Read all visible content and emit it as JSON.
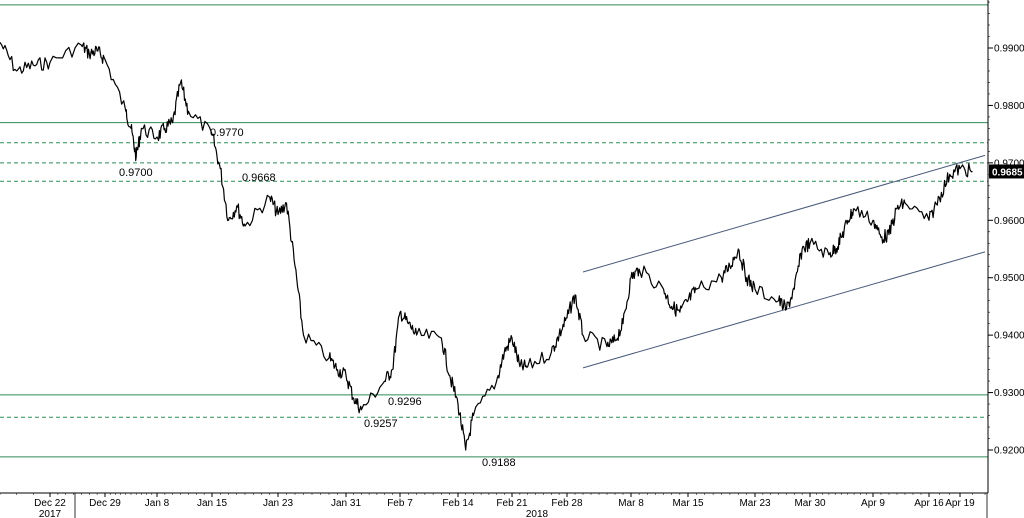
{
  "chart_data": {
    "type": "line",
    "title": "",
    "xlabel": "",
    "ylabel": "",
    "ylim": [
      0.915,
      1.0
    ],
    "grid": false,
    "x_tick_labels": [
      "Dec 22",
      "Dec 29",
      "Jan 8",
      "Jan 15",
      "Jan 23",
      "Jan 31",
      "Feb 7",
      "Feb 14",
      "Feb 21",
      "Feb 28",
      "Mar 8",
      "Mar 15",
      "Mar 23",
      "Mar 30",
      "Apr 9",
      "Apr 16",
      "Apr 19"
    ],
    "year_labels": [
      "2017",
      "2018"
    ],
    "y_tick_labels": [
      "0.9900",
      "0.9800",
      "0.9700",
      "0.9600",
      "0.9500",
      "0.9400",
      "0.9300",
      "0.9200"
    ],
    "y_ticks": [
      0.99,
      0.98,
      0.97,
      0.96,
      0.95,
      0.94,
      0.93,
      0.92
    ],
    "last_value_label": "0.9685",
    "last_value": 0.9685,
    "annotations": [
      {
        "text": "0.9770",
        "value": 0.977
      },
      {
        "text": "0.9700",
        "value": 0.97
      },
      {
        "text": "0.9668",
        "value": 0.9668
      },
      {
        "text": "0.9296",
        "value": 0.9296
      },
      {
        "text": "0.9257",
        "value": 0.9257
      },
      {
        "text": "0.9188",
        "value": 0.9188
      }
    ],
    "horizontal_levels": [
      {
        "value": 0.9975,
        "style": "solid"
      },
      {
        "value": 0.977,
        "style": "solid"
      },
      {
        "value": 0.9735,
        "style": "dashed"
      },
      {
        "value": 0.97,
        "style": "dashed"
      },
      {
        "value": 0.9668,
        "style": "dashed"
      },
      {
        "value": 0.9296,
        "style": "solid"
      },
      {
        "value": 0.9257,
        "style": "dashed"
      },
      {
        "value": 0.9188,
        "style": "solid"
      }
    ],
    "channel": {
      "upper": [
        {
          "x": "Mar 2",
          "y": 0.951
        },
        {
          "x": "Apr 21",
          "y": 0.9713
        }
      ],
      "lower": [
        {
          "x": "Mar 2",
          "y": 0.9343
        },
        {
          "x": "Apr 21",
          "y": 0.9545
        }
      ]
    },
    "series": [
      {
        "points": [
          [
            "Dec 19",
            0.991
          ],
          [
            "Dec 20",
            0.986
          ],
          [
            "Dec 21",
            0.987
          ],
          [
            "Dec 22",
            0.9875
          ],
          [
            "Dec 26",
            0.9905
          ],
          [
            "Dec 27",
            0.989
          ],
          [
            "Dec 28",
            0.9895
          ],
          [
            "Dec 29",
            0.988
          ],
          [
            "Jan 2",
            0.979
          ],
          [
            "Jan 3",
            0.976
          ],
          [
            "Jan 4",
            0.971
          ],
          [
            "Jan 5",
            0.976
          ],
          [
            "Jan 8",
            0.9745
          ],
          [
            "Jan 9",
            0.976
          ],
          [
            "Jan 10",
            0.977
          ],
          [
            "Jan 11",
            0.984
          ],
          [
            "Jan 12",
            0.979
          ],
          [
            "Jan 15",
            0.975
          ],
          [
            "Jan 16",
            0.969
          ],
          [
            "Jan 17",
            0.96
          ],
          [
            "Jan 18",
            0.9625
          ],
          [
            "Jan 19",
            0.959
          ],
          [
            "Jan 22",
            0.964
          ],
          [
            "Jan 23",
            0.961
          ],
          [
            "Jan 24",
            0.963
          ],
          [
            "Jan 25",
            0.952
          ],
          [
            "Jan 26",
            0.94
          ],
          [
            "Jan 29",
            0.936
          ],
          [
            "Jan 30",
            0.934
          ],
          [
            "Jan 31",
            0.933
          ],
          [
            "Feb 1",
            0.929
          ],
          [
            "Feb 2",
            0.927
          ],
          [
            "Feb 5",
            0.932
          ],
          [
            "Feb 6",
            0.934
          ],
          [
            "Feb 7",
            0.944
          ],
          [
            "Feb 8",
            0.942
          ],
          [
            "Feb 9",
            0.94
          ],
          [
            "Feb 12",
            0.9395
          ],
          [
            "Feb 13",
            0.933
          ],
          [
            "Feb 14",
            0.928
          ],
          [
            "Feb 15",
            0.92
          ],
          [
            "Feb 16",
            0.926
          ],
          [
            "Feb 19",
            0.932
          ],
          [
            "Feb 20",
            0.937
          ],
          [
            "Feb 21",
            0.9395
          ],
          [
            "Feb 22",
            0.9345
          ],
          [
            "Feb 23",
            0.9345
          ],
          [
            "Feb 26",
            0.937
          ],
          [
            "Feb 27",
            0.94
          ],
          [
            "Feb 28",
            0.943
          ],
          [
            "Mar 1",
            0.947
          ],
          [
            "Mar 2",
            0.94
          ],
          [
            "Mar 5",
            0.938
          ],
          [
            "Mar 6",
            0.939
          ],
          [
            "Mar 7",
            0.942
          ],
          [
            "Mar 8",
            0.95
          ],
          [
            "Mar 9",
            0.9515
          ],
          [
            "Mar 12",
            0.948
          ],
          [
            "Mar 13",
            0.945
          ],
          [
            "Mar 14",
            0.944
          ],
          [
            "Mar 15",
            0.946
          ],
          [
            "Mar 16",
            0.948
          ],
          [
            "Mar 19",
            0.95
          ],
          [
            "Mar 20",
            0.952
          ],
          [
            "Mar 21",
            0.955
          ],
          [
            "Mar 22",
            0.95
          ],
          [
            "Mar 23",
            0.948
          ],
          [
            "Mar 26",
            0.946
          ],
          [
            "Mar 27",
            0.9445
          ],
          [
            "Mar 28",
            0.948
          ],
          [
            "Mar 29",
            0.955
          ],
          [
            "Mar 30",
            0.956
          ],
          [
            "Apr 2",
            0.954
          ],
          [
            "Apr 3",
            0.955
          ],
          [
            "Apr 4",
            0.957
          ],
          [
            "Apr 5",
            0.96
          ],
          [
            "Apr 6",
            0.962
          ],
          [
            "Apr 9",
            0.96
          ],
          [
            "Apr 10",
            0.957
          ],
          [
            "Apr 11",
            0.9575
          ],
          [
            "Apr 12",
            0.962
          ],
          [
            "Apr 13",
            0.963
          ],
          [
            "Apr 16",
            0.96
          ],
          [
            "Apr 17",
            0.964
          ],
          [
            "Apr 18",
            0.968
          ],
          [
            "Apr 19",
            0.969
          ],
          [
            "Apr 20",
            0.9685
          ]
        ]
      }
    ],
    "colors": {
      "price": "#000000",
      "levels": "#2e8b57",
      "channel": "#4a5a7a",
      "axis": "#000000",
      "last_value_bg": "#000000",
      "last_value_text": "#ffffff"
    }
  }
}
